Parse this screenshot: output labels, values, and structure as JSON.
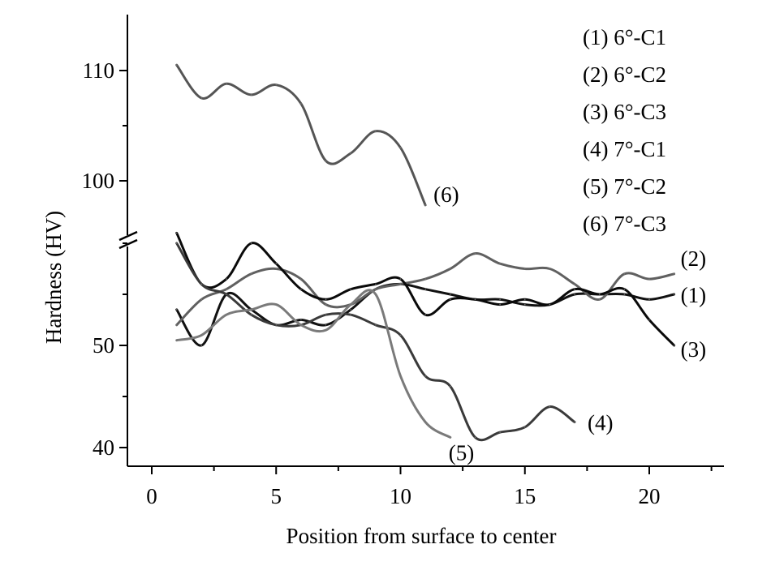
{
  "chart_data": {
    "type": "line",
    "xlabel": "Position from surface to center",
    "ylabel": "Hardness (HV)",
    "xlim": [
      -2,
      23
    ],
    "x_ticks": [
      0,
      5,
      10,
      15,
      20
    ],
    "x_tick_labels": [
      "0",
      "5",
      "10",
      "15",
      "20"
    ],
    "y_axis_broken": true,
    "y_lower_range": [
      38,
      65
    ],
    "y_upper_range": [
      96.5,
      115
    ],
    "y_ticks": [
      40,
      50,
      100,
      110
    ],
    "y_tick_labels": [
      "40",
      "50",
      "100",
      "110"
    ],
    "grid": false,
    "legend_position": "top-right",
    "legend": [
      "(1) 6°-C1",
      "(2) 6°-C2",
      "(3) 6°-C3",
      "(4) 7°-C1",
      "(5) 7°-C2",
      "(6) 7°-C3"
    ],
    "series": [
      {
        "name": "(1) 6°-C1",
        "label": "(1)",
        "color": "#111111",
        "x": [
          1,
          2,
          3,
          4,
          5,
          6,
          7,
          8,
          9,
          10,
          11,
          12,
          13,
          14,
          15,
          16,
          17,
          18,
          19,
          20,
          21
        ],
        "y": [
          53.5,
          50,
          55,
          53.5,
          52,
          52.5,
          52,
          53.5,
          55.5,
          56,
          55.5,
          55,
          54.5,
          54.5,
          54,
          54,
          55,
          55,
          55,
          54.5,
          55
        ]
      },
      {
        "name": "(2) 6°-C2",
        "label": "(2)",
        "color": "#606060",
        "x": [
          1,
          2,
          3,
          4,
          5,
          6,
          7,
          8,
          9,
          10,
          11,
          12,
          13,
          14,
          15,
          16,
          17,
          18,
          19,
          20,
          21
        ],
        "y": [
          52,
          54.5,
          55.5,
          57,
          57.5,
          56.5,
          54,
          54,
          55.5,
          56,
          56.5,
          57.5,
          59,
          58,
          57.5,
          57.5,
          56,
          54.5,
          57,
          56.5,
          57
        ]
      },
      {
        "name": "(3) 6°-C3",
        "label": "(3)",
        "color": "#0a0a0a",
        "x": [
          1,
          2,
          3,
          4,
          5,
          6,
          7,
          8,
          9,
          10,
          11,
          12,
          13,
          14,
          15,
          16,
          17,
          18,
          19,
          20,
          21
        ],
        "y": [
          61,
          56,
          56.5,
          60,
          58,
          55.5,
          54.5,
          55.5,
          56,
          56.5,
          53,
          54.5,
          54.5,
          54,
          54.5,
          54,
          55.5,
          55,
          55.5,
          52.5,
          50
        ]
      },
      {
        "name": "(4) 7°-C1",
        "label": "(4)",
        "color": "#3a3a3a",
        "x": [
          1,
          2,
          3,
          4,
          5,
          6,
          7,
          8,
          9,
          10,
          11,
          12,
          13,
          14,
          15,
          16,
          17
        ],
        "y": [
          60,
          56,
          55,
          53,
          52,
          52,
          53,
          53,
          52,
          51,
          47,
          46,
          41,
          41.5,
          42,
          44,
          42.5
        ]
      },
      {
        "name": "(5) 7°-C2",
        "label": "(5)",
        "color": "#7a7a7a",
        "x": [
          1,
          2,
          3,
          4,
          5,
          6,
          7,
          8,
          9,
          10,
          11,
          12
        ],
        "y": [
          50.5,
          51,
          53,
          53.5,
          54,
          52,
          51.5,
          54,
          55,
          47,
          42.5,
          41
        ]
      },
      {
        "name": "(6) 7°-C3",
        "label": "(6)",
        "color": "#555555",
        "x": [
          1,
          2,
          3,
          4,
          5,
          6,
          7,
          8,
          9,
          10,
          11
        ],
        "y": [
          110.5,
          107.5,
          108.8,
          107.8,
          108.7,
          107,
          101.8,
          102.5,
          104.5,
          103,
          97.8
        ]
      }
    ]
  }
}
